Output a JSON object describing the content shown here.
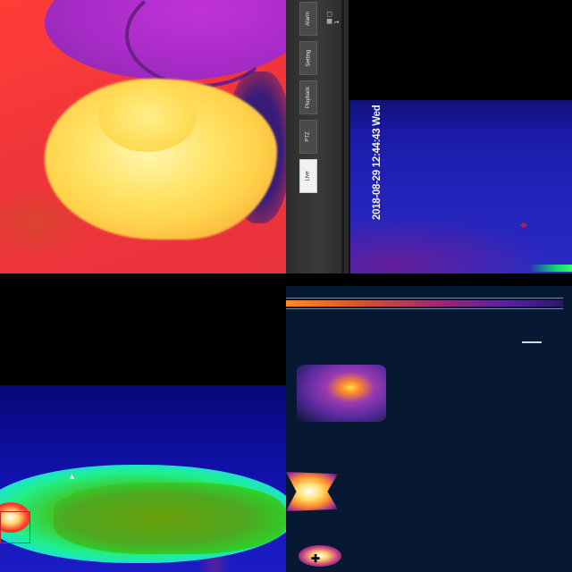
{
  "menu": {
    "tabs": [
      {
        "label": "Alarm"
      },
      {
        "label": "Setting"
      },
      {
        "label": "Playback"
      },
      {
        "label": "PTZ"
      },
      {
        "label": "Live",
        "active": true
      }
    ],
    "toolbar_icons": [
      "lock-icon",
      "window-icon",
      "exit-icon"
    ]
  },
  "camera_2": {
    "timestamp": "2018-08-29 12:44:43 Wed"
  },
  "colors": {
    "menu_bg": "#3a3a3a",
    "active_tab": "#f1f1f1",
    "overlay_text": "#f2f2f2",
    "target_marker": "#d62828"
  }
}
